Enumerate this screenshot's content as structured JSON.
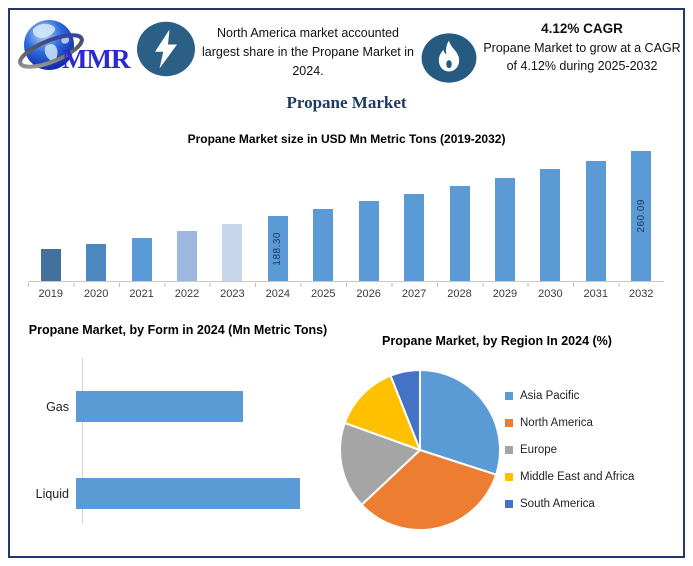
{
  "header": {
    "logo_text": "MMR",
    "highlight": "North America market accounted largest share in the Propane Market in 2024.",
    "cagr_title": "4.12% CAGR",
    "cagr_description": "Propane Market to grow at a CAGR of 4.12% during 2025-2032"
  },
  "page_title": "Propane Market",
  "colors": {
    "frame_border": "#22386b",
    "title_navy": "#1f3864",
    "primary_bar_blue": "#5b9bd5",
    "icon_circle_blue": "#2c5f85",
    "flame_circle_blue": "#275a80",
    "data_label_navy": "#1f3864"
  },
  "chart_data": [
    {
      "type": "bar",
      "title": "Propane Market size in USD Mn Metric Tons (2019-2032)",
      "categories": [
        "2019",
        "2020",
        "2021",
        "2022",
        "2023",
        "2024",
        "2025",
        "2026",
        "2027",
        "2028",
        "2029",
        "2030",
        "2031",
        "2032"
      ],
      "values": [
        151.3,
        156.9,
        163.2,
        170.8,
        178.5,
        188.3,
        196.06,
        204.14,
        212.55,
        221.31,
        230.43,
        239.92,
        249.81,
        260.09
      ],
      "data_labels": [
        "",
        "",
        "",
        "",
        "",
        "188.30",
        "",
        "",
        "",
        "",
        "",
        "",
        "",
        "260.09"
      ],
      "bar_colors": [
        "#41719c",
        "#4d87c0",
        "#5b9bd5",
        "#9db7e0",
        "#c6d6ec",
        "#5b9bd5",
        "#5b9bd5",
        "#5b9bd5",
        "#5b9bd5",
        "#5b9bd5",
        "#5b9bd5",
        "#5b9bd5",
        "#5b9bd5",
        "#5b9bd5"
      ],
      "ylim": [
        115,
        265
      ],
      "xlabel": "",
      "ylabel": "",
      "grid": false,
      "note": "only 2024 (188.30) and 2032 (260.09) carry data labels; other values estimated from bar heights, 4.12% CAGR 2025-2032"
    },
    {
      "type": "bar",
      "orientation": "horizontal",
      "title": "Propane Market, by Form in 2024 (Mn Metric Tons)",
      "categories": [
        "Gas",
        "Liquid"
      ],
      "values_pct_of_max": [
        74.5,
        100
      ],
      "bar_color": "#5b9bd5",
      "note": "no numeric labels shown; Gas bar is ~74.5% the length of Liquid bar"
    },
    {
      "type": "pie",
      "title": "Propane Market, by Region In 2024 (%)",
      "slices": [
        {
          "label": "Asia Pacific",
          "value": 30,
          "color": "#5b9bd5"
        },
        {
          "label": "North America",
          "value": 33,
          "color": "#ed7d31"
        },
        {
          "label": "Europe",
          "value": 17.5,
          "color": "#a5a5a5"
        },
        {
          "label": "Middle East and Africa",
          "value": 13.5,
          "color": "#ffc000"
        },
        {
          "label": "South America",
          "value": 6,
          "color": "#4472c4"
        }
      ],
      "legend_position": "right",
      "start_angle_deg": 0,
      "direction": "clockwise",
      "note": "percent values estimated from slice angles; no labels printed on pie"
    }
  ]
}
